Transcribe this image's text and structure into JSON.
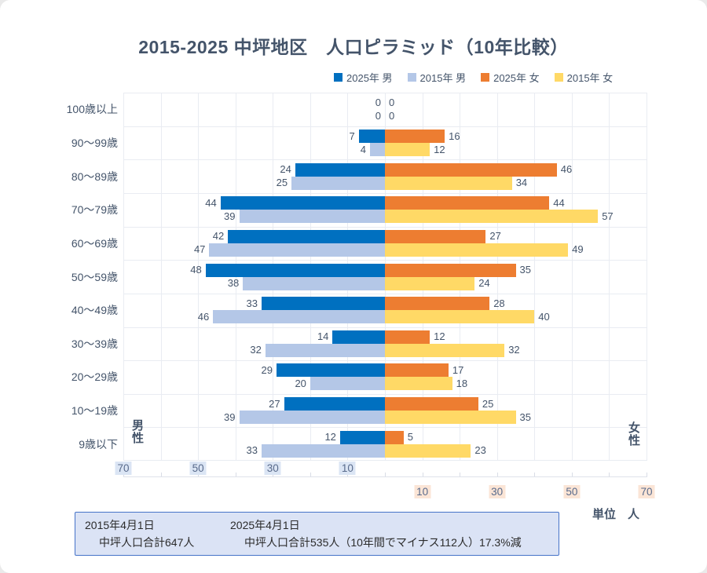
{
  "title": "2015-2025 中坪地区　人口ピラミッド（10年比較）",
  "legend": [
    {
      "label": "2025年 男",
      "color": "#0070C0"
    },
    {
      "label": "2015年 男",
      "color": "#B4C7E7"
    },
    {
      "label": "2025年 女",
      "color": "#ED7D31"
    },
    {
      "label": "2015年 女",
      "color": "#FFD966"
    }
  ],
  "chart_data": {
    "type": "bar",
    "subtype": "population-pyramid",
    "title": "2015-2025 中坪地区　人口ピラミッド（10年比較）",
    "categories": [
      "100歳以上",
      "90～99歳",
      "80～89歳",
      "70～79歳",
      "60～69歳",
      "50～59歳",
      "40～49歳",
      "30～39歳",
      "20～29歳",
      "10～19歳",
      "9歳以下"
    ],
    "series": [
      {
        "name": "2025年 男",
        "side": "left",
        "color": "#0070C0",
        "values": [
          0,
          7,
          24,
          44,
          42,
          48,
          33,
          14,
          29,
          27,
          12
        ]
      },
      {
        "name": "2015年 男",
        "side": "left",
        "color": "#B4C7E7",
        "values": [
          0,
          4,
          25,
          39,
          47,
          38,
          46,
          32,
          20,
          39,
          33
        ]
      },
      {
        "name": "2025年 女",
        "side": "right",
        "color": "#ED7D31",
        "values": [
          0,
          16,
          46,
          44,
          27,
          35,
          28,
          12,
          17,
          25,
          5
        ]
      },
      {
        "name": "2015年 女",
        "side": "right",
        "color": "#FFD966",
        "values": [
          0,
          12,
          34,
          57,
          49,
          24,
          40,
          32,
          18,
          35,
          23
        ]
      }
    ],
    "x_ticks_left": [
      70,
      50,
      30,
      10
    ],
    "x_ticks_right": [
      10,
      30,
      50,
      70
    ],
    "x_max_each_side": 70,
    "grid": true,
    "legend_position": "top",
    "data_labels": true
  },
  "axis": {
    "male_side_label": "男性",
    "female_side_label": "女性",
    "unit_label": "単位　人"
  },
  "footer": {
    "left_date": "2015年4月1日",
    "left_total": "中坪人口合計647人",
    "right_date": "2025年4月1日",
    "right_total": "中坪人口合計535人（10年間でマイナス112人）17.3%減"
  },
  "colors": {
    "male_2025": "#0070C0",
    "male_2015": "#B4C7E7",
    "female_2025": "#ED7D31",
    "female_2015": "#FFD966",
    "title_text": "#44546A",
    "value_text": "#44546A",
    "tick_text": "#596b8c",
    "tick_bg_male": "#dbe5f4",
    "tick_bg_female": "#fbe5d6",
    "grid_line": "#e9ecf2",
    "footer_bg": "#dbe3f5",
    "footer_border": "#4673c8"
  }
}
